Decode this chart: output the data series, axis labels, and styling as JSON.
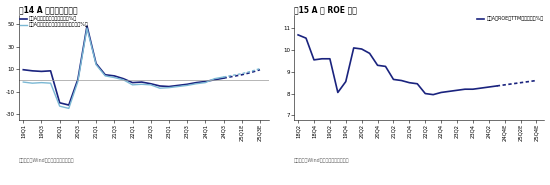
{
  "chart1": {
    "title": "图14 A 股利润增速预测",
    "legend1": "全部A股归母净利润累计同比（%）",
    "legend2": "全部A股剔除金融归母净利润累计同比（%）",
    "xticks": [
      "19Q1",
      "19Q3",
      "20Q1",
      "20Q3",
      "21Q1",
      "21Q3",
      "22Q1",
      "22Q3",
      "23Q1",
      "23Q3",
      "24Q1",
      "24Q3",
      "25Q1E",
      "25Q3E"
    ],
    "yticks": [
      -30,
      -10,
      10,
      30,
      50
    ],
    "ylim": [
      -35,
      58
    ],
    "color1": "#1a237e",
    "color2": "#7bb8d4",
    "source": "资料来源：Wind，海通证券研究所测算",
    "s1_solid_x": [
      0,
      1,
      2,
      3,
      4,
      5,
      6,
      7,
      8,
      9,
      10,
      11,
      12,
      13,
      14,
      15,
      16,
      17,
      18,
      19,
      20,
      21,
      22
    ],
    "s1_solid_y": [
      9.5,
      8.5,
      8.0,
      8.5,
      -20.0,
      -22.0,
      1.0,
      48.5,
      15.0,
      5.0,
      4.0,
      1.5,
      -2.0,
      -1.5,
      -3.0,
      -5.0,
      -5.5,
      -4.5,
      -3.5,
      -2.0,
      -1.0,
      0.5,
      2.0
    ],
    "s1_dot_x": [
      22,
      23,
      24,
      25,
      26
    ],
    "s1_dot_y": [
      2.0,
      3.5,
      5.0,
      7.0,
      9.5
    ],
    "s2_solid_x": [
      0,
      1,
      2,
      3,
      4,
      5,
      6,
      7,
      8,
      9,
      10,
      11,
      12,
      13,
      14,
      15,
      16,
      17,
      18,
      19,
      20,
      21,
      22
    ],
    "s2_solid_y": [
      -1.5,
      -2.5,
      -2.0,
      -2.5,
      -23.0,
      -25.0,
      -1.0,
      46.5,
      14.0,
      4.0,
      2.5,
      0.5,
      -4.0,
      -3.5,
      -4.0,
      -7.0,
      -6.5,
      -5.5,
      -4.5,
      -3.0,
      -2.0,
      1.5,
      3.0
    ],
    "s2_dot_x": [
      22,
      23,
      24,
      25,
      26
    ],
    "s2_dot_y": [
      3.0,
      4.5,
      6.0,
      8.0,
      10.5
    ],
    "xtick_pos": [
      0,
      2,
      4,
      6,
      8,
      10,
      12,
      14,
      16,
      18,
      20,
      22,
      24,
      26
    ]
  },
  "chart2": {
    "title": "图15 A 股 ROE 预测",
    "legend1": "全部A股ROE（TTM，整体法，%）",
    "xticks": [
      "18Q2",
      "18Q4",
      "19Q2",
      "19Q4",
      "20Q2",
      "20Q4",
      "21Q2",
      "21Q4",
      "22Q2",
      "22Q4",
      "23Q2",
      "23Q4",
      "24Q2",
      "24Q4E",
      "25Q2E",
      "25Q4E"
    ],
    "yticks": [
      7,
      8,
      9,
      10,
      11
    ],
    "ylim": [
      6.8,
      11.6
    ],
    "color1": "#1a237e",
    "source": "资料来源：Wind，海通证券研究所测算",
    "s_solid_x": [
      0,
      1,
      2,
      3,
      4,
      5,
      6,
      7,
      8,
      9,
      10,
      11,
      12,
      13,
      14,
      15,
      16,
      17,
      18,
      19,
      20,
      21,
      22,
      23,
      24,
      25
    ],
    "s_solid_y": [
      10.7,
      10.55,
      9.55,
      9.6,
      9.6,
      8.05,
      8.55,
      10.1,
      10.05,
      9.85,
      9.3,
      9.25,
      8.65,
      8.6,
      8.5,
      8.45,
      8.0,
      7.95,
      8.05,
      8.1,
      8.15,
      8.2,
      8.2,
      8.25,
      8.3,
      8.35
    ],
    "s_dot_x": [
      25,
      26,
      27,
      28,
      29,
      30
    ],
    "s_dot_y": [
      8.35,
      8.4,
      8.45,
      8.5,
      8.55,
      8.6
    ],
    "xtick_pos": [
      0,
      2,
      4,
      6,
      8,
      10,
      12,
      14,
      16,
      18,
      20,
      22,
      24,
      26,
      28,
      30
    ]
  }
}
